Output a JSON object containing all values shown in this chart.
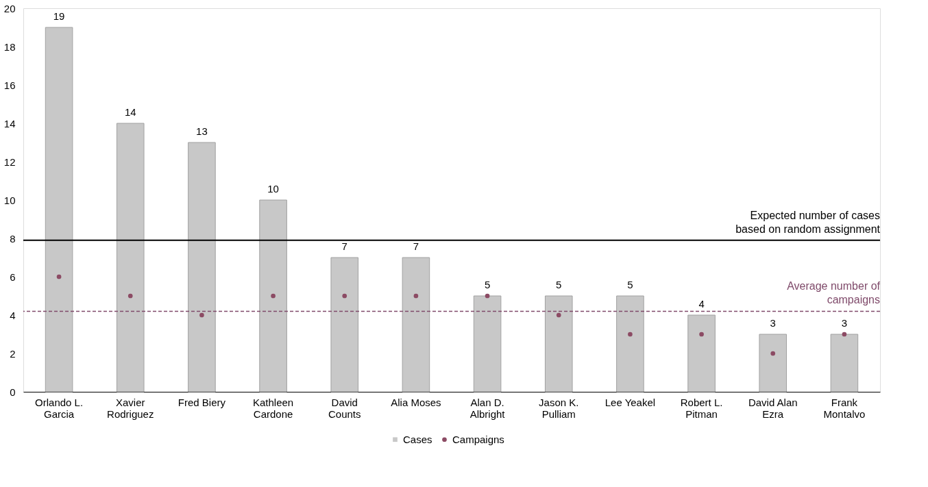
{
  "chart_data": {
    "type": "bar",
    "categories": [
      "Orlando L. Garcia",
      "Xavier Rodriguez",
      "Fred Biery",
      "Kathleen Cardone",
      "David Counts",
      "Alia Moses",
      "Alan D. Albright",
      "Jason K. Pulliam",
      "Lee Yeakel",
      "Robert L. Pitman",
      "David Alan Ezra",
      "Frank Montalvo"
    ],
    "series": [
      {
        "name": "Cases",
        "type": "bar",
        "color": "#c8c8c8",
        "values": [
          19,
          14,
          13,
          10,
          7,
          7,
          5,
          5,
          5,
          4,
          3,
          3
        ],
        "value_labels": [
          "19",
          "14",
          "13",
          "10",
          "7",
          "7",
          "5",
          "5",
          "5",
          "4",
          "3",
          "3"
        ]
      },
      {
        "name": "Campaigns",
        "type": "scatter",
        "color": "#8c4b64",
        "values": [
          6,
          5,
          4,
          5,
          5,
          5,
          5,
          4,
          3,
          3,
          2,
          3
        ]
      }
    ],
    "ylim": [
      0,
      20
    ],
    "yticks": [
      0,
      2,
      4,
      6,
      8,
      10,
      12,
      14,
      16,
      18,
      20
    ],
    "ref_lines": [
      {
        "axis": "y",
        "value": 7.9,
        "label": "Expected number of cases based on random assignment",
        "color": "#000000",
        "line_style": "solid"
      },
      {
        "axis": "y",
        "value": 4.2,
        "label": "Average number of campaigns",
        "color": "#7f4a6a",
        "line_style": "dashed"
      }
    ],
    "grid": false,
    "legend": "bottom",
    "marker": "circle"
  }
}
